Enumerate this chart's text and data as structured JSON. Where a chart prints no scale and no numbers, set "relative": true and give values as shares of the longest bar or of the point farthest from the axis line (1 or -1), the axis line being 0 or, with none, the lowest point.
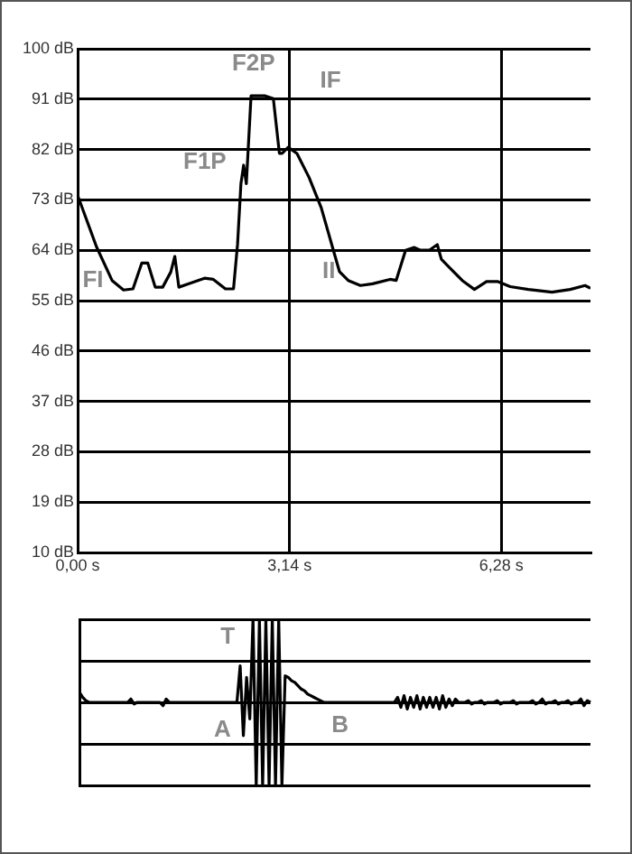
{
  "chart_data": [
    {
      "type": "line",
      "x": [
        0,
        0.28,
        0.51,
        0.68,
        0.82,
        0.95,
        1.04,
        1.15,
        1.26,
        1.38,
        1.44,
        1.5,
        1.62,
        1.88,
        2.01,
        2.19,
        2.31,
        2.37,
        2.42,
        2.46,
        2.5,
        2.57,
        2.77,
        2.9,
        2.99,
        3.03,
        3.12,
        3.25,
        3.43,
        3.61,
        3.79,
        3.88,
        4.01,
        4.19,
        4.37,
        4.63,
        4.72,
        4.86,
        4.99,
        5.08,
        5.21,
        5.33,
        5.39,
        5.52,
        5.7,
        5.88,
        6.06,
        6.23,
        6.41,
        6.68,
        7.03,
        7.3,
        7.52,
        7.6
      ],
      "series": [
        {
          "color": "#000000",
          "values": [
            73.8,
            64.6,
            58.6,
            56.9,
            57.1,
            61.7,
            61.7,
            57.4,
            57.4,
            60.1,
            62.9,
            57.4,
            57.9,
            59.0,
            58.8,
            57.1,
            57.1,
            65.1,
            75.9,
            79.2,
            75.9,
            91.6,
            91.6,
            91.1,
            81.3,
            81.3,
            82.4,
            81.3,
            77.0,
            71.6,
            64.0,
            60.2,
            58.6,
            57.7,
            58.0,
            58.8,
            58.6,
            64.0,
            64.5,
            64.0,
            64.0,
            65.0,
            62.4,
            60.8,
            58.6,
            57.0,
            58.4,
            58.4,
            57.5,
            57.0,
            56.5,
            57.0,
            57.7,
            57.2
          ]
        }
      ],
      "xlim": [
        0,
        7.6
      ],
      "xticks": [
        {
          "value": 0,
          "label": "0,00 s"
        },
        {
          "value": 3.14,
          "label": "3,14 s"
        },
        {
          "value": 6.28,
          "label": "6,28 s"
        }
      ],
      "ylim": [
        10,
        100
      ],
      "yticks": [
        {
          "value": 10,
          "label": "10 dB"
        },
        {
          "value": 19,
          "label": "19 dB"
        },
        {
          "value": 28,
          "label": "28 dB"
        },
        {
          "value": 37,
          "label": "37 dB"
        },
        {
          "value": 46,
          "label": "46 dB"
        },
        {
          "value": 55,
          "label": "55 dB"
        },
        {
          "value": 64,
          "label": "64 dB"
        },
        {
          "value": 73,
          "label": "73 dB"
        },
        {
          "value": 82,
          "label": "82 dB"
        },
        {
          "value": 91,
          "label": "91 dB"
        },
        {
          "value": 100,
          "label": "100 dB"
        }
      ],
      "grid": true,
      "marker": "none",
      "annotations": [
        "F2P",
        "IF",
        "F1P",
        "FI",
        "II"
      ]
    },
    {
      "type": "line",
      "relative": true,
      "categories": [
        null,
        null,
        null,
        null,
        null,
        null,
        null,
        null,
        null,
        null,
        null,
        null,
        null,
        null,
        null,
        null,
        null,
        null,
        null,
        null,
        null,
        null,
        null,
        null,
        null,
        null,
        null,
        null,
        null,
        null,
        null,
        null,
        null,
        null,
        null,
        null,
        null,
        null,
        null,
        null,
        null,
        null,
        null,
        null,
        null,
        null,
        null,
        null,
        null,
        null,
        null,
        null,
        null,
        null,
        null,
        null,
        null,
        null,
        null,
        null,
        null,
        null,
        null,
        null,
        null,
        null,
        null,
        null,
        null,
        null,
        null,
        null,
        null,
        null,
        null,
        null,
        null,
        null,
        null,
        null,
        null,
        null,
        null,
        null,
        null,
        null,
        null,
        null,
        null,
        null,
        null,
        null,
        null,
        null,
        null,
        null,
        null,
        null,
        null,
        null,
        null,
        null,
        null,
        null,
        null,
        null,
        null,
        null,
        null,
        null,
        null,
        null,
        null,
        null,
        null,
        null,
        null,
        null,
        null,
        null,
        null,
        null,
        null,
        null,
        null,
        null,
        null,
        null,
        null,
        null,
        null,
        null,
        null,
        null,
        null,
        null,
        null,
        null,
        null,
        null,
        null,
        null,
        null,
        null,
        null,
        null,
        null,
        null,
        null,
        null,
        null,
        null,
        null,
        null,
        null,
        null,
        null,
        null,
        null,
        null
      ],
      "color": "#000000",
      "values": [
        0.56,
        0.53,
        0.51,
        0.5,
        0.5,
        0.5,
        0.5,
        0.5,
        0.5,
        0.5,
        0.5,
        0.5,
        0.5,
        0.5,
        0.5,
        0.5,
        0.52,
        0.49,
        0.5,
        0.5,
        0.5,
        0.5,
        0.5,
        0.5,
        0.5,
        0.5,
        0.48,
        0.52,
        0.5,
        0.5,
        0.5,
        0.5,
        0.5,
        0.5,
        0.5,
        0.5,
        0.5,
        0.5,
        0.5,
        0.5,
        0.5,
        0.5,
        0.5,
        0.5,
        0.5,
        0.5,
        0.5,
        0.5,
        0.5,
        0.5,
        0.72,
        0.3,
        0.65,
        0.4,
        1,
        0,
        1,
        0,
        1,
        0,
        1,
        0,
        1,
        0,
        0.66,
        0.65,
        0.63,
        0.62,
        0.6,
        0.58,
        0.57,
        0.55,
        0.54,
        0.53,
        0.52,
        0.51,
        0.5,
        0.5,
        0.5,
        0.5,
        0.5,
        0.5,
        0.5,
        0.5,
        0.5,
        0.5,
        0.5,
        0.5,
        0.5,
        0.5,
        0.5,
        0.5,
        0.5,
        0.5,
        0.5,
        0.5,
        0.5,
        0.5,
        0.5,
        0.53,
        0.47,
        0.54,
        0.46,
        0.53,
        0.47,
        0.54,
        0.46,
        0.53,
        0.47,
        0.53,
        0.47,
        0.53,
        0.46,
        0.54,
        0.47,
        0.52,
        0.48,
        0.52,
        0.5,
        0.5,
        0.5,
        0.51,
        0.49,
        0.5,
        0.5,
        0.51,
        0.49,
        0.5,
        0.5,
        0.5,
        0.51,
        0.49,
        0.5,
        0.5,
        0.5,
        0.51,
        0.49,
        0.5,
        0.5,
        0.5,
        0.5,
        0.51,
        0.49,
        0.5,
        0.52,
        0.49,
        0.5,
        0.5,
        0.51,
        0.49,
        0.5,
        0.5,
        0.51,
        0.49,
        0.5,
        0.5,
        0.52,
        0.48,
        0.51,
        0.5
      ],
      "grid": "y",
      "annotations": [
        "T",
        "A",
        "B"
      ]
    }
  ]
}
